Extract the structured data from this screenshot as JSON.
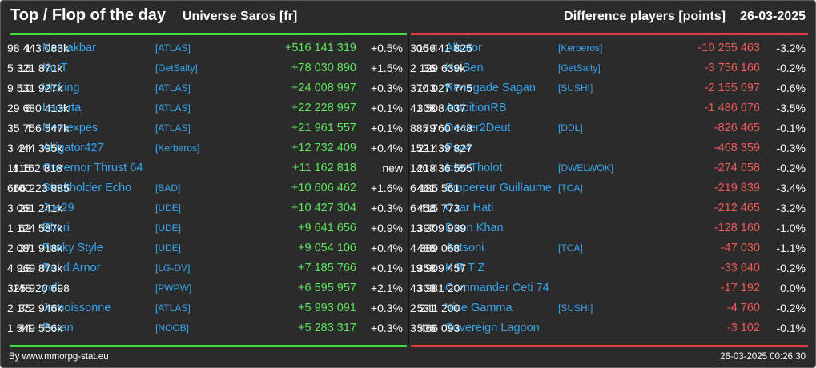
{
  "header": {
    "title": "Top / Flop of the day",
    "universe": "Universe Saros [fr]",
    "diff_label": "Difference players [points]",
    "date": "26-03-2025"
  },
  "top": [
    {
      "rank": "1",
      "name": "Nemakbar",
      "alliance": "[ATLAS]",
      "points": "98 443 083k",
      "delta": "+516 141 319",
      "pct": "+0.5%"
    },
    {
      "rank": "16",
      "name": "KurT",
      "alliance": "[GetSalty]",
      "points": "5 321 871k",
      "delta": "+78 030 890",
      "pct": "+1.5%"
    },
    {
      "rank": "10",
      "name": "Vicking",
      "alliance": "[ATLAS]",
      "points": "9 531 927k",
      "delta": "+24 008 997",
      "pct": "+0.3%"
    },
    {
      "rank": "6",
      "name": "Lacerta",
      "alliance": "[ATLAS]",
      "points": "29 680 413k",
      "delta": "+22 228 997",
      "pct": "+0.1%"
    },
    {
      "rank": "4",
      "name": "Nemexpes",
      "alliance": "[ATLAS]",
      "points": "35 756 547k",
      "delta": "+21 961 557",
      "pct": "+0.1%"
    },
    {
      "rank": "24",
      "name": "Alligator427",
      "alliance": "[Kerberos]",
      "points": "3 444 395k",
      "delta": "+12 732 409",
      "pct": "+0.4%"
    },
    {
      "rank": "415",
      "name": "Governor Thrust 64",
      "alliance": "",
      "points": "11 162 818",
      "delta": "+11 162 818",
      "pct": "new"
    },
    {
      "rank": "100",
      "name": "Stadtholder Echo",
      "alliance": "[BAD]",
      "points": "666 223 885",
      "delta": "+10 606 462",
      "pct": "+1.6%"
    },
    {
      "rank": "28",
      "name": "Joe29",
      "alliance": "[UDE]",
      "points": "3 061 241k",
      "delta": "+10 427 304",
      "pct": "+0.3%"
    },
    {
      "rank": "62",
      "name": "Ehori",
      "alliance": "[UDE]",
      "points": "1 124 587k",
      "delta": "+9 641 656",
      "pct": "+0.9%"
    },
    {
      "rank": "37",
      "name": "Funky Style",
      "alliance": "[UDE]",
      "points": "2 081 918k",
      "delta": "+9 054 106",
      "pct": "+0.4%"
    },
    {
      "rank": "18",
      "name": "Roi d Arnor",
      "alliance": "[LG-DV]",
      "points": "4 969 873k",
      "delta": "+7 185 766",
      "pct": "+0.1%"
    },
    {
      "rank": "148",
      "name": "yoli",
      "alliance": "[PWPW]",
      "points": "325 920 698",
      "delta": "+6 595 957",
      "pct": "+2.1%"
    },
    {
      "rank": "35",
      "name": "Jemoissonne",
      "alliance": "[ATLAS]",
      "points": "2 172 946k",
      "delta": "+5 993 091",
      "pct": "+0.3%"
    },
    {
      "rank": "44",
      "name": "Poran",
      "alliance": "[NOOB]",
      "points": "1 549 556k",
      "delta": "+5 283 317",
      "pct": "+0.3%"
    }
  ],
  "flop": [
    {
      "rank": "156",
      "name": "Albator",
      "alliance": "[Kerberos]",
      "points": "306 441 825",
      "delta": "-10 255 463",
      "pct": "-3.2%"
    },
    {
      "rank": "36",
      "name": "HeiSen",
      "alliance": "[GetSalty]",
      "points": "2 129 639k",
      "delta": "-3 756 166",
      "pct": "-0.2%"
    },
    {
      "rank": "143",
      "name": "Renegade Sagan",
      "alliance": "[SUSHI]",
      "points": "370 027 745",
      "delta": "-2 155 697",
      "pct": "-0.6%"
    },
    {
      "rank": "308",
      "name": "AmbitionRB",
      "alliance": "",
      "points": "41 508 037",
      "delta": "-1 486 676",
      "pct": "-3.5%"
    },
    {
      "rank": "79",
      "name": "Dealer2Deut",
      "alliance": "[DDL]",
      "points": "885 760 448",
      "delta": "-826 465",
      "pct": "-0.1%"
    },
    {
      "rank": "211",
      "name": "Psy4",
      "alliance": "",
      "points": "152 439 827",
      "delta": "-468 359",
      "pct": "-0.3%"
    },
    {
      "rank": "218",
      "name": "Icho Tholot",
      "alliance": "[DWELWOK]",
      "points": "140 436 555",
      "delta": "-274 658",
      "pct": "-0.2%"
    },
    {
      "rank": "461",
      "name": "Empereur Guillaume",
      "alliance": "[TCA]",
      "points": "6 185 561",
      "delta": "-219 839",
      "pct": "-3.4%"
    },
    {
      "rank": "458",
      "name": "Czar Hati",
      "alliance": "",
      "points": "6 415 773",
      "delta": "-212 465",
      "pct": "-3.2%"
    },
    {
      "rank": "397",
      "name": "Dunn Khan",
      "alliance": "",
      "points": "13 309 939",
      "delta": "-128 160",
      "pct": "-1.0%"
    },
    {
      "rank": "488",
      "name": "Antsoni",
      "alliance": "[TCA]",
      "points": "4 389 068",
      "delta": "-47 030",
      "pct": "-1.1%"
    },
    {
      "rank": "358",
      "name": "K R T Z",
      "alliance": "",
      "points": "19 909 457",
      "delta": "-33 640",
      "pct": "-0.2%"
    },
    {
      "rank": "303",
      "name": "Commander Ceti 74",
      "alliance": "",
      "points": "43 981 204",
      "delta": "-17 192",
      "pct": "0.0%"
    },
    {
      "rank": "531",
      "name": "Vice Gamma",
      "alliance": "[SUSHI]",
      "points": "2 241 200",
      "delta": "-4 760",
      "pct": "-0.2%"
    },
    {
      "rank": "506",
      "name": "Sovereign Lagoon",
      "alliance": "",
      "points": "3 466 093",
      "delta": "-3 102",
      "pct": "-0.1%"
    }
  ],
  "footer": {
    "source": "By www.mmorpg-stat.eu",
    "timestamp": "26-03-2025 00:26:30"
  },
  "colors": {
    "background": "#2b2b2b",
    "link": "#34a6f0",
    "gain": "#5ee65e",
    "loss": "#f05a5a",
    "top_bar": "#3ddc3d",
    "flop_bar": "#e04040"
  }
}
